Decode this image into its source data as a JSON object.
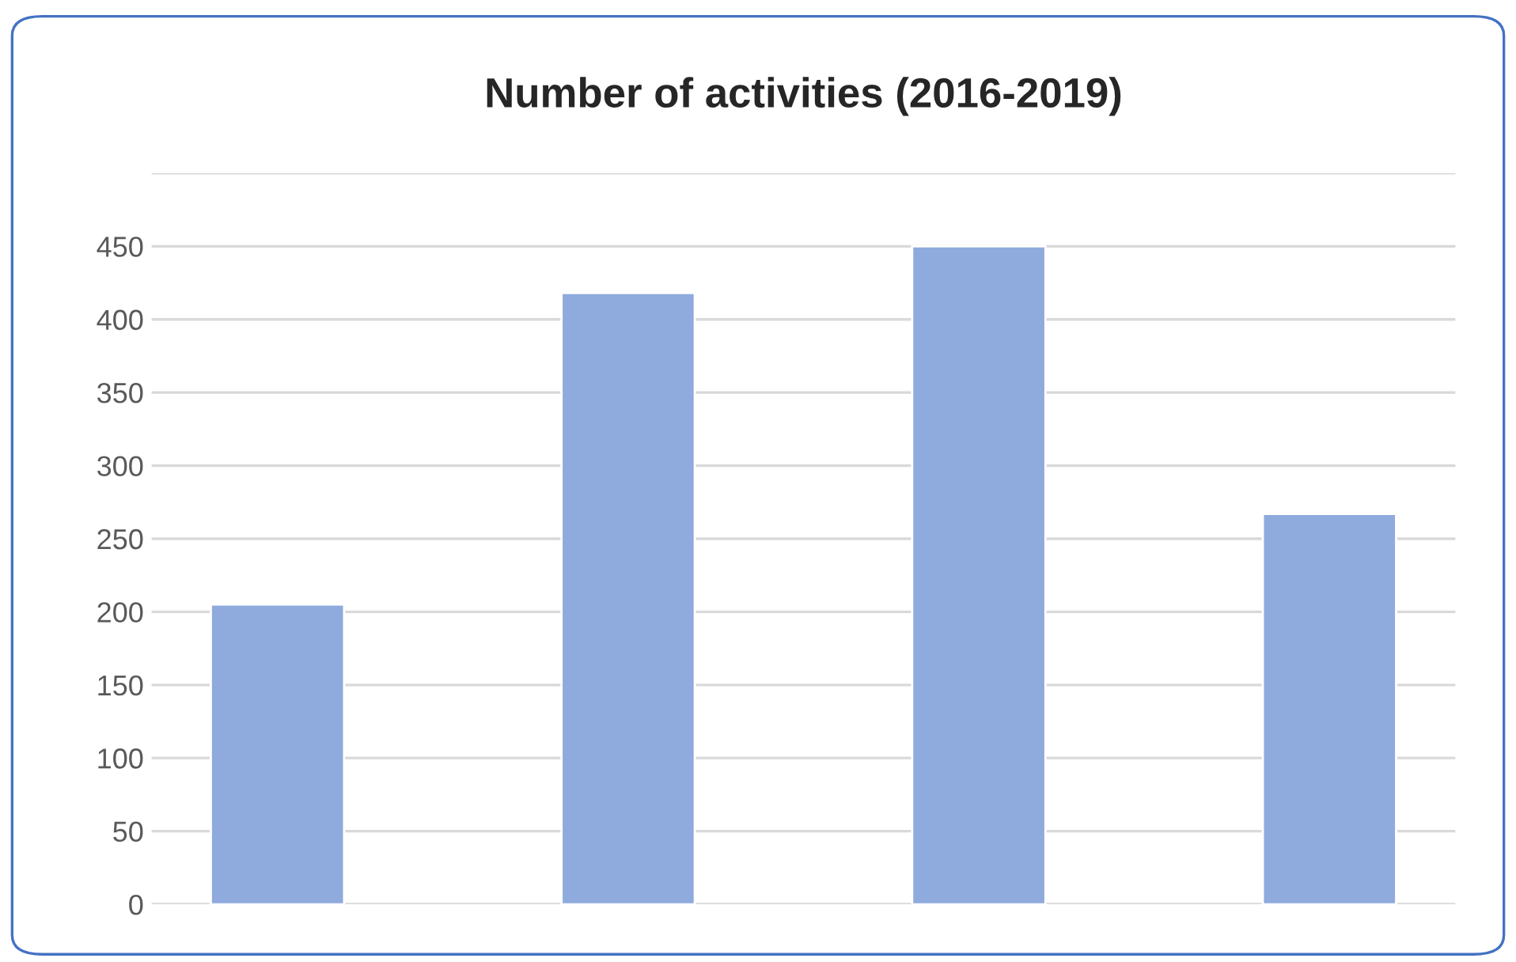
{
  "chart_data": {
    "type": "bar",
    "title": "Number of activities (2016-2019)",
    "categories": [
      null,
      null,
      null,
      null
    ],
    "series": [
      {
        "color": "#8faadc",
        "values": [
          205,
          418,
          450,
          267
        ]
      }
    ],
    "ylim": [
      0,
      500
    ],
    "yticks": [
      0,
      50,
      100,
      150,
      200,
      250,
      300,
      350,
      400,
      450,
      {
        "value": 500,
        "label": null
      }
    ],
    "grid": "y",
    "legend": false
  }
}
